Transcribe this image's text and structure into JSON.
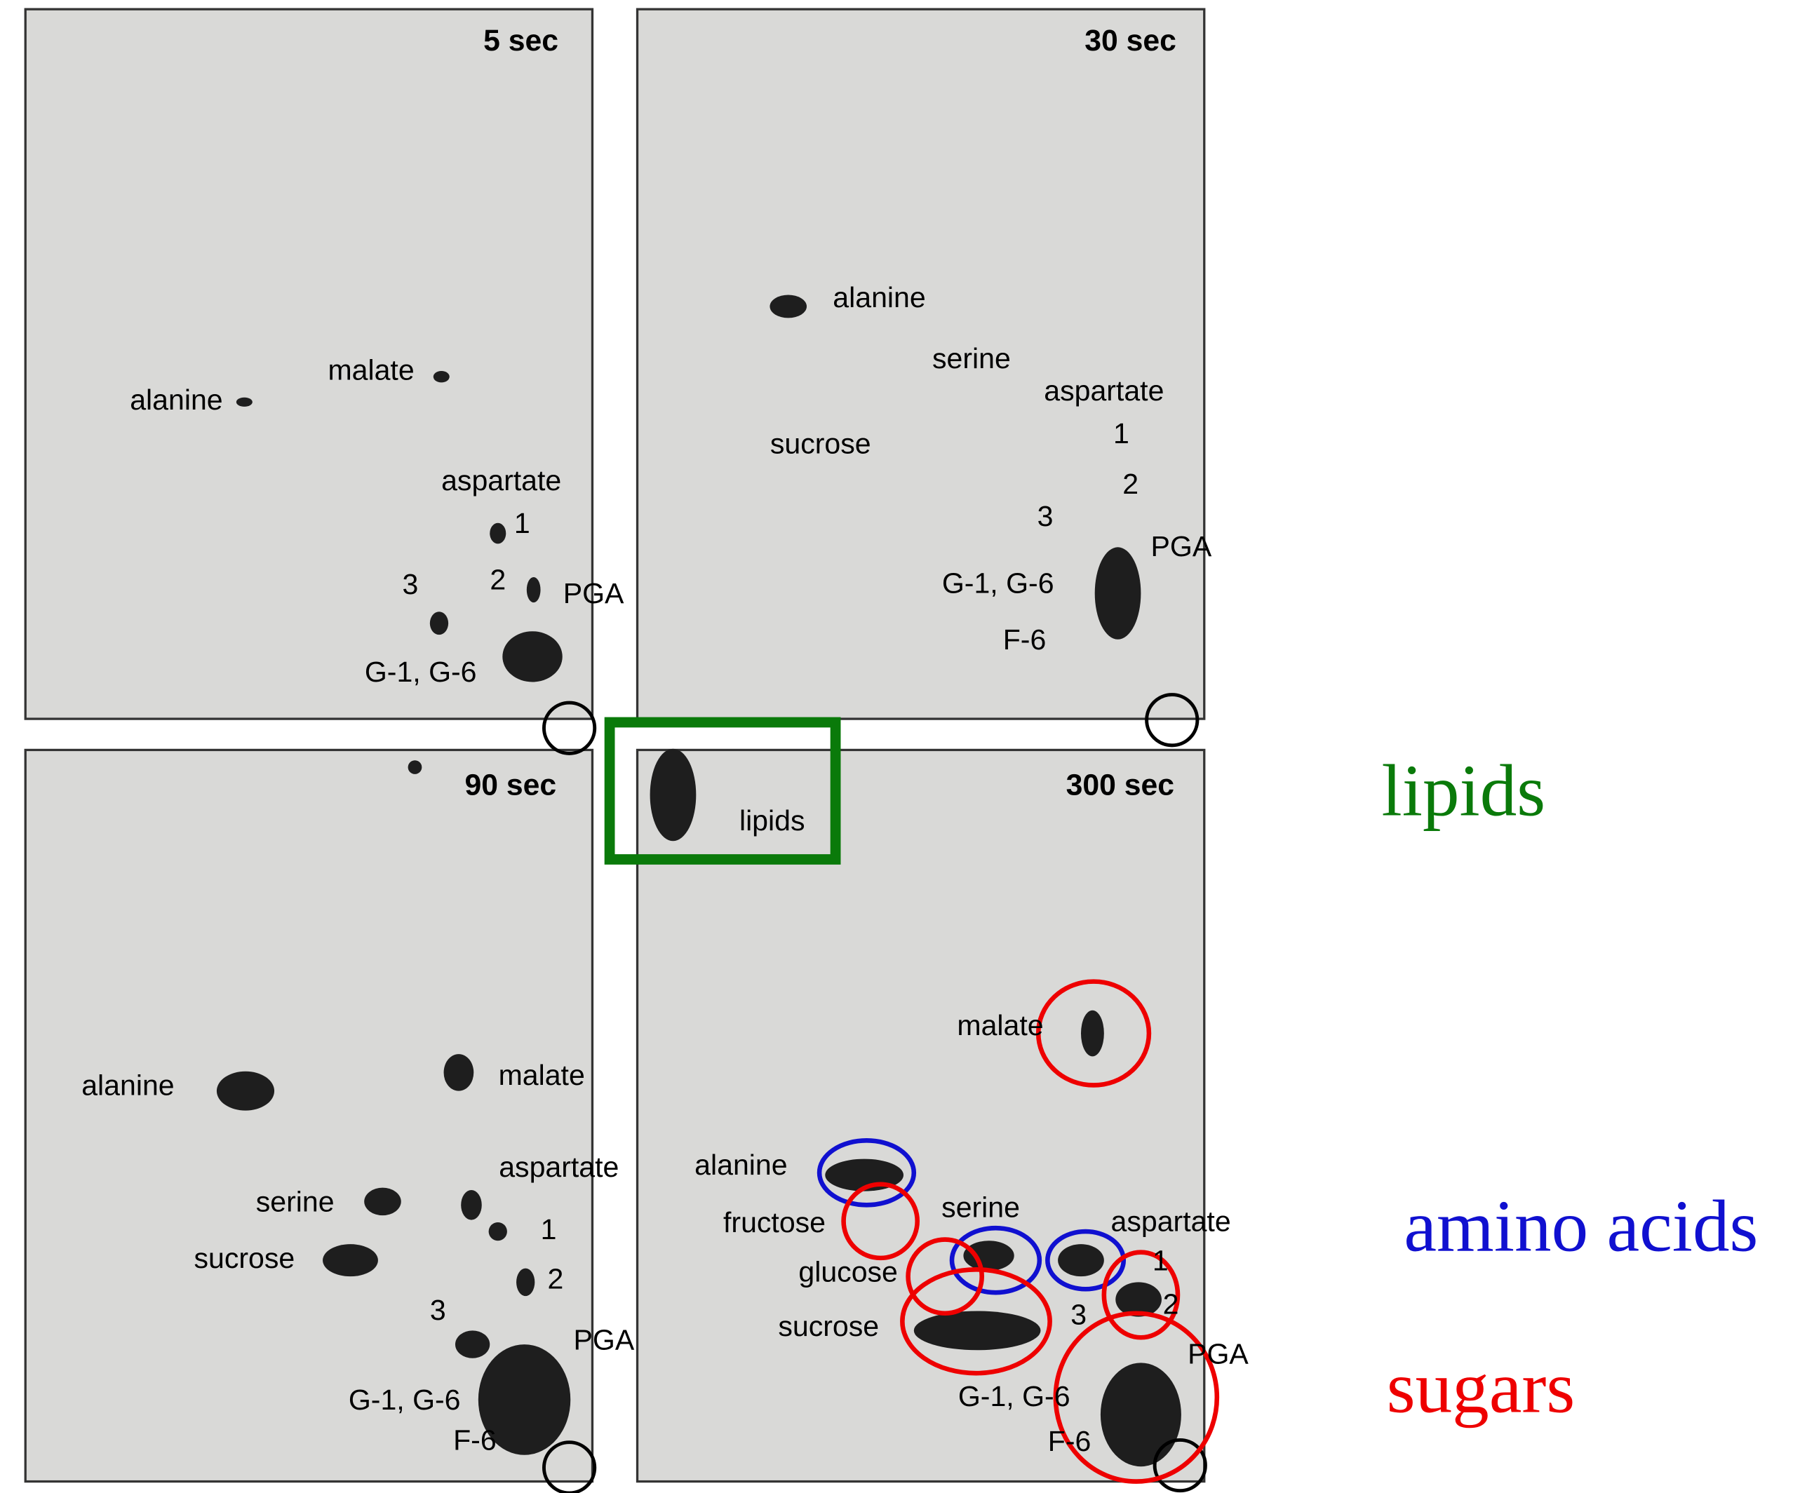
{
  "panels": [
    {
      "title": "5 sec",
      "labels": [
        "malate",
        "alanine",
        "aspartate",
        "1",
        "2",
        "3",
        "PGA",
        "G-1, G-6"
      ]
    },
    {
      "title": "30 sec",
      "labels": [
        "alanine",
        "serine",
        "aspartate",
        "sucrose",
        "1",
        "2",
        "3",
        "PGA",
        "G-1, G-6",
        "F-6"
      ]
    },
    {
      "title": "90 sec",
      "labels": [
        "alanine",
        "malate",
        "aspartate",
        "serine",
        "sucrose",
        "1",
        "2",
        "3",
        "PGA",
        "G-1, G-6",
        "F-6"
      ]
    },
    {
      "title": "300 sec",
      "labels": [
        "malate",
        "alanine",
        "serine",
        "aspartate",
        "fructose",
        "glucose",
        "1",
        "2",
        "3",
        "sucrose",
        "PGA",
        "G-1, G-6",
        "F-6"
      ]
    }
  ],
  "lipids_box_label": "lipids",
  "legend": [
    "lipids",
    "amino acids",
    "sugars"
  ]
}
